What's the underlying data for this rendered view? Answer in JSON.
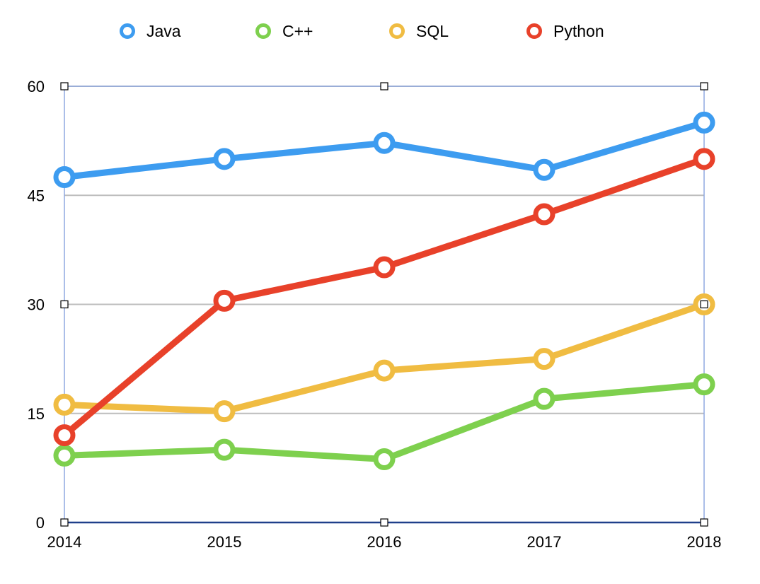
{
  "chart_data": {
    "type": "line",
    "title": "",
    "xlabel": "",
    "ylabel": "",
    "categories": [
      "2014",
      "2015",
      "2016",
      "2017",
      "2018"
    ],
    "ylim": [
      0,
      60
    ],
    "yticks": [
      0,
      15,
      30,
      45,
      60
    ],
    "grid": true,
    "legend": "top",
    "series": [
      {
        "name": "Java",
        "color": "#3d9cf0",
        "values": [
          47.5,
          50.0,
          52.2,
          48.5,
          55.0
        ]
      },
      {
        "name": "C++",
        "color": "#7ed04e",
        "values": [
          9.2,
          10.0,
          8.7,
          17.0,
          19.0
        ]
      },
      {
        "name": "SQL",
        "color": "#f0bc42",
        "values": [
          16.2,
          15.3,
          20.9,
          22.5,
          30.0
        ]
      },
      {
        "name": "Python",
        "color": "#e8412a",
        "values": [
          12.0,
          30.5,
          35.1,
          42.4,
          50.0
        ]
      }
    ]
  }
}
